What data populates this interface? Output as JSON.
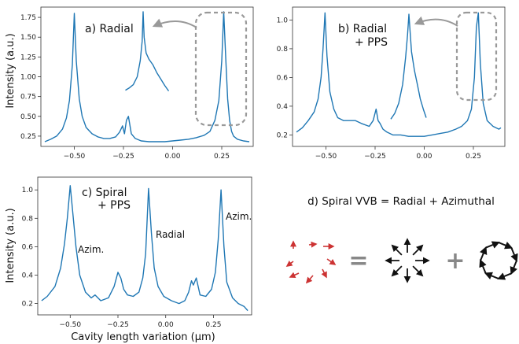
{
  "chart_data": [
    {
      "panel": "a",
      "type": "line",
      "label": "a) Radial",
      "ylabel": "Intensity (a.u.)",
      "xlim": [
        -0.67,
        0.41
      ],
      "ylim": [
        0.12,
        1.88
      ],
      "xticks": [
        -0.5,
        -0.25,
        0.0,
        0.25
      ],
      "xtick_labels": [
        "−0.50",
        "−0.25",
        "0.00",
        "0.25"
      ],
      "yticks": [
        0.25,
        0.5,
        0.75,
        1.0,
        1.25,
        1.5,
        1.75
      ],
      "ytick_labels": [
        "0.25",
        "0.50",
        "0.75",
        "1.00",
        "1.25",
        "1.50",
        "1.75"
      ],
      "series_color": "#1f77b4",
      "x": [
        -0.65,
        -0.62,
        -0.59,
        -0.56,
        -0.54,
        -0.525,
        -0.51,
        -0.5,
        -0.49,
        -0.475,
        -0.46,
        -0.44,
        -0.41,
        -0.38,
        -0.35,
        -0.32,
        -0.29,
        -0.27,
        -0.255,
        -0.245,
        -0.235,
        -0.225,
        -0.21,
        -0.19,
        -0.16,
        -0.12,
        -0.08,
        -0.04,
        0.0,
        0.04,
        0.08,
        0.12,
        0.16,
        0.19,
        0.215,
        0.235,
        0.25,
        0.26,
        0.27,
        0.28,
        0.29,
        0.3,
        0.31,
        0.33,
        0.36,
        0.39
      ],
      "y": [
        0.18,
        0.21,
        0.25,
        0.34,
        0.48,
        0.7,
        1.15,
        1.8,
        1.2,
        0.72,
        0.5,
        0.36,
        0.28,
        0.24,
        0.22,
        0.22,
        0.24,
        0.3,
        0.38,
        0.28,
        0.45,
        0.5,
        0.28,
        0.22,
        0.19,
        0.18,
        0.18,
        0.18,
        0.19,
        0.2,
        0.21,
        0.23,
        0.26,
        0.31,
        0.45,
        0.7,
        1.2,
        1.82,
        1.25,
        0.72,
        0.45,
        0.31,
        0.25,
        0.21,
        0.19,
        0.18
      ],
      "inset_x": [
        -0.24,
        -0.22,
        -0.2,
        -0.18,
        -0.165,
        -0.155,
        -0.15,
        -0.145,
        -0.135,
        -0.12,
        -0.1,
        -0.08,
        -0.06,
        -0.04,
        -0.02
      ],
      "inset_y": [
        0.83,
        0.86,
        0.9,
        1.0,
        1.2,
        1.45,
        1.82,
        1.5,
        1.3,
        1.22,
        1.15,
        1.05,
        0.97,
        0.89,
        0.82
      ]
    },
    {
      "panel": "b",
      "type": "line",
      "label": [
        "b) Radial",
        "+ PPS"
      ],
      "xlim": [
        -0.67,
        0.41
      ],
      "ylim": [
        0.12,
        1.09
      ],
      "xticks": [
        -0.5,
        -0.25,
        0.0,
        0.25
      ],
      "xtick_labels": [
        "−0.50",
        "−0.25",
        "0.00",
        "0.25"
      ],
      "yticks": [
        0.2,
        0.4,
        0.6,
        0.8,
        1.0
      ],
      "ytick_labels": [
        "0.2",
        "0.4",
        "0.6",
        "0.8",
        "1.0"
      ],
      "series_color": "#1f77b4",
      "x": [
        -0.65,
        -0.62,
        -0.59,
        -0.56,
        -0.54,
        -0.525,
        -0.515,
        -0.505,
        -0.495,
        -0.48,
        -0.46,
        -0.44,
        -0.41,
        -0.38,
        -0.35,
        -0.32,
        -0.28,
        -0.26,
        -0.245,
        -0.235,
        -0.225,
        -0.21,
        -0.19,
        -0.16,
        -0.12,
        -0.08,
        -0.04,
        0.0,
        0.04,
        0.08,
        0.12,
        0.16,
        0.19,
        0.22,
        0.24,
        0.255,
        0.265,
        0.275,
        0.285,
        0.3,
        0.32,
        0.35,
        0.38,
        0.39
      ],
      "y": [
        0.22,
        0.25,
        0.3,
        0.36,
        0.45,
        0.6,
        0.8,
        1.05,
        0.75,
        0.5,
        0.38,
        0.32,
        0.3,
        0.3,
        0.3,
        0.28,
        0.26,
        0.3,
        0.38,
        0.3,
        0.28,
        0.24,
        0.22,
        0.2,
        0.2,
        0.19,
        0.19,
        0.19,
        0.2,
        0.21,
        0.22,
        0.24,
        0.26,
        0.3,
        0.38,
        0.6,
        0.95,
        1.05,
        0.7,
        0.42,
        0.3,
        0.26,
        0.24,
        0.25
      ],
      "inset_x": [
        -0.17,
        -0.15,
        -0.13,
        -0.11,
        -0.095,
        -0.085,
        -0.078,
        -0.072,
        -0.065,
        -0.05,
        -0.035,
        -0.02,
        -0.005,
        0.01
      ],
      "inset_y": [
        0.31,
        0.35,
        0.42,
        0.55,
        0.74,
        0.9,
        1.04,
        0.92,
        0.78,
        0.65,
        0.55,
        0.45,
        0.38,
        0.32
      ]
    },
    {
      "panel": "c",
      "type": "line",
      "label": [
        "c) Spiral",
        "+ PPS"
      ],
      "xlabel": "Cavity length variation (µm)",
      "ylabel": "Intensity (a.u.)",
      "xlim": [
        -0.67,
        0.45
      ],
      "ylim": [
        0.12,
        1.09
      ],
      "xticks": [
        -0.5,
        -0.25,
        0.0,
        0.25
      ],
      "xtick_labels": [
        "−0.50",
        "−0.25",
        "0.00",
        "0.25"
      ],
      "yticks": [
        0.2,
        0.4,
        0.6,
        0.8,
        1.0
      ],
      "ytick_labels": [
        "0.2",
        "0.4",
        "0.6",
        "0.8",
        "1.0"
      ],
      "series_color": "#1f77b4",
      "annotations": [
        "Azim.",
        "Radial",
        "Azim."
      ],
      "x": [
        -0.65,
        -0.62,
        -0.58,
        -0.55,
        -0.53,
        -0.515,
        -0.5,
        -0.485,
        -0.47,
        -0.45,
        -0.42,
        -0.39,
        -0.37,
        -0.34,
        -0.3,
        -0.27,
        -0.25,
        -0.235,
        -0.22,
        -0.2,
        -0.17,
        -0.14,
        -0.12,
        -0.105,
        -0.09,
        -0.075,
        -0.06,
        -0.04,
        -0.01,
        0.03,
        0.07,
        0.1,
        0.12,
        0.135,
        0.145,
        0.16,
        0.18,
        0.21,
        0.24,
        0.26,
        0.275,
        0.29,
        0.305,
        0.32,
        0.35,
        0.38,
        0.41,
        0.43
      ],
      "y": [
        0.22,
        0.25,
        0.32,
        0.45,
        0.62,
        0.8,
        1.03,
        0.82,
        0.6,
        0.4,
        0.28,
        0.24,
        0.26,
        0.22,
        0.24,
        0.32,
        0.42,
        0.38,
        0.3,
        0.26,
        0.25,
        0.28,
        0.38,
        0.55,
        1.01,
        0.7,
        0.45,
        0.32,
        0.25,
        0.22,
        0.2,
        0.22,
        0.28,
        0.36,
        0.33,
        0.38,
        0.26,
        0.25,
        0.3,
        0.42,
        0.65,
        1.0,
        0.6,
        0.35,
        0.24,
        0.2,
        0.18,
        0.15
      ]
    }
  ],
  "panel_d": {
    "title": "d) Spiral VVB = Radial + Azimuthal",
    "equals_sign": "=",
    "plus_sign": "+",
    "spiral_color": "#cc3333",
    "arrow_color": "#111111",
    "operator_color": "#888888"
  },
  "colors": {
    "line": "#1f77b4",
    "dashed_box": "#999999",
    "arrow_grey": "#999999"
  }
}
